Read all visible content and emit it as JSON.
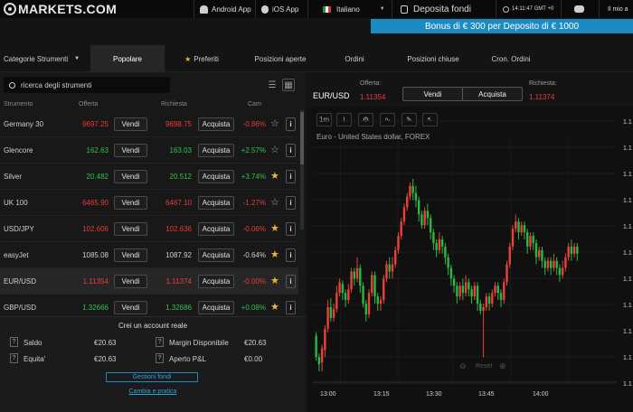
{
  "header": {
    "brand": "MARKETS.COM",
    "android_label": "Android App",
    "ios_label": "iOS App",
    "language": "Italiano",
    "deposit_label": "Deposita fondi",
    "clock": "14:11:47 GMT +0",
    "my_account": "Il mio a",
    "bonus_banner": "Bonus di € 300 per Deposito di € 1000"
  },
  "tabs": [
    {
      "label": "Categorie Strumenti"
    },
    {
      "label": "Popolare"
    },
    {
      "label": "Preferiti"
    },
    {
      "label": "Posizioni aperte"
    },
    {
      "label": "Ordini"
    },
    {
      "label": "Posizioni chiuse"
    },
    {
      "label": "Cron. Ordini"
    }
  ],
  "search": {
    "placeholder": "ricerca degli strumenti"
  },
  "columns": {
    "instrument": "Strumento",
    "bid": "Offerta",
    "ask": "Richiesta",
    "change": "Cam"
  },
  "instruments": [
    {
      "name": "Germany 30",
      "bid": "9697.25",
      "ask": "9698.75",
      "change": "-0.86%",
      "dir": "down",
      "fav": false,
      "sell": "Vendi",
      "buy": "Acquista"
    },
    {
      "name": "Glencore",
      "bid": "162.63",
      "ask": "163.03",
      "change": "+2.57%",
      "dir": "up",
      "fav": false,
      "sell": "Vendi",
      "buy": "Acquista"
    },
    {
      "name": "Silver",
      "bid": "20.482",
      "ask": "20.512",
      "change": "+3.74%",
      "dir": "up",
      "fav": true,
      "sell": "Vendi",
      "buy": "Acquista"
    },
    {
      "name": "UK 100",
      "bid": "6465.90",
      "ask": "6467.10",
      "change": "-1.27%",
      "dir": "down",
      "fav": false,
      "sell": "Vendi",
      "buy": "Acquista"
    },
    {
      "name": "USD/JPY",
      "bid": "102.606",
      "ask": "102.636",
      "change": "-0.06%",
      "dir": "down",
      "fav": true,
      "sell": "Vendi",
      "buy": "Acquista"
    },
    {
      "name": "easyJet",
      "bid": "1085.08",
      "ask": "1087.92",
      "change": "-0.64%",
      "dir": "neutral",
      "fav": true,
      "sell": "Vendi",
      "buy": "Acquista"
    },
    {
      "name": "EUR/USD",
      "bid": "1.11354",
      "ask": "1.11374",
      "change": "-0.00%",
      "dir": "down",
      "fav": true,
      "sell": "Vendi",
      "buy": "Acquista"
    },
    {
      "name": "GBP/USD",
      "bid": "1.32666",
      "ask": "1.32686",
      "change": "+0.08%",
      "dir": "up",
      "fav": true,
      "sell": "Vendi",
      "buy": "Acquista"
    }
  ],
  "account": {
    "title": "Crei un account reale",
    "saldo_label": "Saldo",
    "saldo_value": "€20.63",
    "equita_label": "Equita'",
    "equita_value": "€20.63",
    "margin_label": "Margin Disponibile",
    "margin_value": "€20.63",
    "pl_label": "Aperto P&L",
    "pl_value": "€0.00",
    "manage_button": "Gestioni fondi",
    "switch_link": "Cambia e pratica"
  },
  "trade": {
    "symbol": "EUR/USD",
    "bid_label": "Offerta:",
    "bid_value": "1.11354",
    "ask_label": "Richiesta:",
    "ask_value": "1.11374",
    "sell": "Vendi",
    "buy": "Acquista"
  },
  "chart_toolbar": {
    "timeframe": "1m"
  },
  "chart_data": {
    "type": "candlestick",
    "title": "Euro - United States dollar, FOREX",
    "x_ticks": [
      "13:00",
      "13:15",
      "13:30",
      "13:45",
      "14:00"
    ],
    "y_tick_labels": [
      "1.1",
      "1.1",
      "1.1",
      "1.1",
      "1.1",
      "1.1",
      "1.1",
      "1.1",
      "1.1",
      "1.1",
      "1.1"
    ],
    "reset_label": "Reset",
    "colors": {
      "up": "#2bb741",
      "down": "#e8423a"
    },
    "candles": [
      [
        0.42,
        0.3,
        0.28,
        0.44
      ],
      [
        0.3,
        0.26,
        0.22,
        0.32
      ],
      [
        0.27,
        0.35,
        0.22,
        0.37
      ],
      [
        0.34,
        0.46,
        0.3,
        0.48
      ],
      [
        0.46,
        0.58,
        0.44,
        0.62
      ],
      [
        0.58,
        0.52,
        0.5,
        0.63
      ],
      [
        0.52,
        0.57,
        0.5,
        0.6
      ],
      [
        0.57,
        0.66,
        0.55,
        0.7
      ],
      [
        0.66,
        0.72,
        0.64,
        0.74
      ],
      [
        0.71,
        0.66,
        0.62,
        0.73
      ],
      [
        0.66,
        0.62,
        0.58,
        0.68
      ],
      [
        0.62,
        0.68,
        0.6,
        0.71
      ],
      [
        0.68,
        0.78,
        0.66,
        0.8
      ],
      [
        0.78,
        0.74,
        0.7,
        0.8
      ],
      [
        0.74,
        0.8,
        0.72,
        0.86
      ],
      [
        0.8,
        0.7,
        0.66,
        0.82
      ],
      [
        0.7,
        0.6,
        0.58,
        0.72
      ],
      [
        0.6,
        0.54,
        0.5,
        0.62
      ],
      [
        0.54,
        0.66,
        0.52,
        0.68
      ],
      [
        0.66,
        0.76,
        0.64,
        0.78
      ],
      [
        0.76,
        0.64,
        0.6,
        0.78
      ],
      [
        0.64,
        0.6,
        0.56,
        0.66
      ],
      [
        0.6,
        0.62,
        0.56,
        0.64
      ],
      [
        0.62,
        0.74,
        0.6,
        0.76
      ],
      [
        0.74,
        0.82,
        0.72,
        0.84
      ],
      [
        0.82,
        0.78,
        0.74,
        0.86
      ],
      [
        0.78,
        0.82,
        0.74,
        0.86
      ],
      [
        0.82,
        0.9,
        0.8,
        0.92
      ],
      [
        0.9,
        0.98,
        0.88,
        1.0
      ],
      [
        0.98,
        1.06,
        0.96,
        1.08
      ],
      [
        1.06,
        1.14,
        1.04,
        1.16
      ],
      [
        1.14,
        1.2,
        1.12,
        1.22
      ],
      [
        1.2,
        1.26,
        1.18,
        1.28
      ],
      [
        1.26,
        1.22,
        1.18,
        1.3
      ],
      [
        1.22,
        1.18,
        1.14,
        1.26
      ],
      [
        1.18,
        1.1,
        1.06,
        1.2
      ],
      [
        1.1,
        1.04,
        1.02,
        1.12
      ],
      [
        1.04,
        1.12,
        1.02,
        1.14
      ],
      [
        1.12,
        1.08,
        1.04,
        1.16
      ],
      [
        1.08,
        1.0,
        0.96,
        1.1
      ],
      [
        1.0,
        0.94,
        0.9,
        1.02
      ],
      [
        0.94,
        0.9,
        0.86,
        0.96
      ],
      [
        0.9,
        0.96,
        0.88,
        1.0
      ],
      [
        0.96,
        0.92,
        0.88,
        0.98
      ],
      [
        0.92,
        0.86,
        0.82,
        0.94
      ],
      [
        0.86,
        0.8,
        0.76,
        0.88
      ],
      [
        0.8,
        0.74,
        0.7,
        0.82
      ],
      [
        0.74,
        0.7,
        0.66,
        0.76
      ],
      [
        0.7,
        0.64,
        0.6,
        0.72
      ],
      [
        0.64,
        0.7,
        0.62,
        0.72
      ],
      [
        0.7,
        0.66,
        0.62,
        0.74
      ],
      [
        0.66,
        0.72,
        0.64,
        0.76
      ],
      [
        0.72,
        0.68,
        0.64,
        0.74
      ],
      [
        0.68,
        0.64,
        0.6,
        0.7
      ],
      [
        0.64,
        0.7,
        0.62,
        0.72
      ],
      [
        0.7,
        0.6,
        0.56,
        0.72
      ],
      [
        0.6,
        0.56,
        0.54,
        0.62
      ],
      [
        0.56,
        0.58,
        0.3,
        0.6
      ],
      [
        0.58,
        0.64,
        0.56,
        0.66
      ],
      [
        0.64,
        0.6,
        0.56,
        0.66
      ],
      [
        0.6,
        0.66,
        0.58,
        0.68
      ],
      [
        0.66,
        0.7,
        0.64,
        0.72
      ],
      [
        0.7,
        0.66,
        0.62,
        0.72
      ],
      [
        0.66,
        0.62,
        0.58,
        0.68
      ],
      [
        0.62,
        0.72,
        0.6,
        0.74
      ],
      [
        0.72,
        0.82,
        0.7,
        0.84
      ],
      [
        0.82,
        0.92,
        0.8,
        0.94
      ],
      [
        0.92,
        1.02,
        0.9,
        1.04
      ],
      [
        1.02,
        1.06,
        1.0,
        1.1
      ],
      [
        1.06,
        1.0,
        0.96,
        1.08
      ],
      [
        1.0,
        1.04,
        0.98,
        1.06
      ],
      [
        1.04,
        1.0,
        0.96,
        1.06
      ],
      [
        1.0,
        0.92,
        0.88,
        1.02
      ],
      [
        0.92,
        0.98,
        0.9,
        1.0
      ],
      [
        0.98,
        0.94,
        0.9,
        1.0
      ],
      [
        0.94,
        0.86,
        0.82,
        0.96
      ],
      [
        0.86,
        0.9,
        0.84,
        0.92
      ],
      [
        0.9,
        0.84,
        0.8,
        0.92
      ],
      [
        0.84,
        0.8,
        0.76,
        0.86
      ],
      [
        0.8,
        0.84,
        0.78,
        0.86
      ],
      [
        0.84,
        0.8,
        0.76,
        0.86
      ],
      [
        0.8,
        0.84,
        0.78,
        0.88
      ],
      [
        0.84,
        0.8,
        0.76,
        0.86
      ],
      [
        0.8,
        0.76,
        0.72,
        0.82
      ],
      [
        0.76,
        0.8,
        0.74,
        0.84
      ],
      [
        0.8,
        0.86,
        0.78,
        0.88
      ],
      [
        0.86,
        0.92,
        0.84,
        0.94
      ],
      [
        0.92,
        0.88,
        0.84,
        0.96
      ],
      [
        0.88,
        0.92,
        0.86,
        0.94
      ],
      [
        0.92,
        0.88,
        0.84,
        0.94
      ]
    ]
  }
}
